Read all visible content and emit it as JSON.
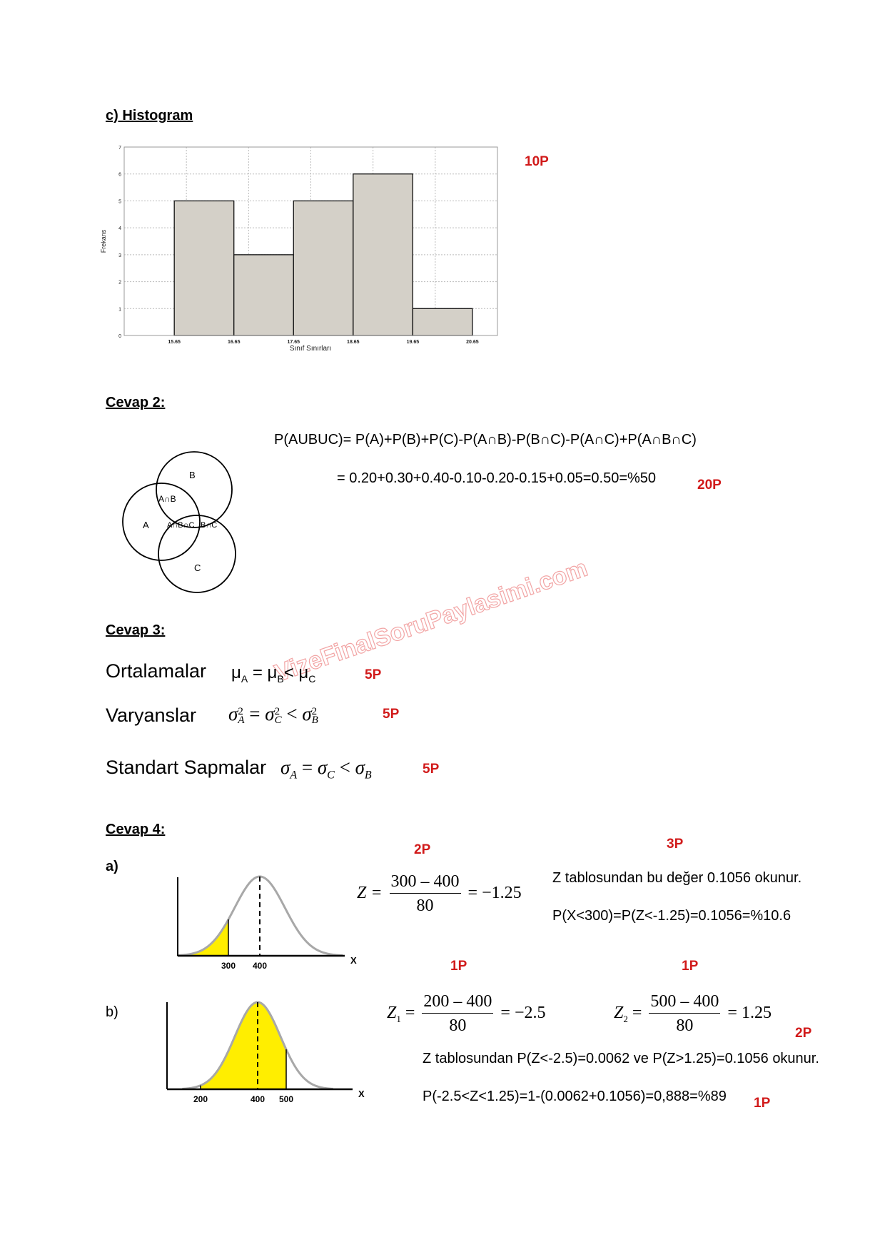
{
  "histogram_section": {
    "heading": "c) Histogram",
    "points": "10P"
  },
  "chart_data": {
    "type": "bar",
    "title": "",
    "xlabel": "Sınıf Sınırları",
    "ylabel": "Frekans",
    "bin_edges": [
      15.65,
      16.65,
      17.65,
      18.65,
      19.65,
      20.65
    ],
    "values": [
      5,
      3,
      5,
      6,
      1
    ],
    "xtick_labels": [
      "15.65",
      "16.65",
      "17.65",
      "18.65",
      "19.65",
      "20.65"
    ],
    "ytick_labels": [
      "0",
      "1",
      "2",
      "3",
      "4",
      "5",
      "6",
      "7"
    ],
    "ylim": [
      0,
      7
    ],
    "xlim": [
      14.81,
      21.07
    ],
    "grid": true,
    "bar_color": "#d4d0c8"
  },
  "cevap2": {
    "heading": "Cevap 2:",
    "formula": "P(AUBUC)= P(A)+P(B)+P(C)-P(A∩B)-P(B∩C)-P(A∩C)+P(A∩B∩C)",
    "result": "= 0.20+0.30+0.40-0.10-0.20-0.15+0.05=0.50=%50",
    "points": "20P",
    "venn": {
      "a": "A",
      "b": "B",
      "c": "C",
      "ab": "A∩B",
      "abc": "A∩B∩C",
      "bc": "B∩C"
    }
  },
  "watermark": "VizeFinalSoruPaylasimi.com",
  "cevap3": {
    "heading": "Cevap 3:",
    "rows": [
      {
        "label": "Ortalamalar",
        "points": "5P"
      },
      {
        "label": "Varyanslar",
        "points": "5P"
      },
      {
        "label": "Standart Sapmalar",
        "points": "5P"
      }
    ],
    "mu": "μ",
    "sigma": "σ",
    "eq": "=",
    "lt": "<",
    "sq": "2",
    "sub_a": "A",
    "sub_b": "B",
    "sub_c": "C"
  },
  "cevap4": {
    "heading": "Cevap 4:",
    "a": {
      "label": "a)",
      "points_formula": "2P",
      "points_text": "3P",
      "z_lhs": "Z =",
      "numerator": "300 – 400",
      "denominator": "80",
      "z_rhs": "= −1.25",
      "line1": "Z tablosundan bu değer 0.1056 okunur.",
      "line2": "P(X<300)=P(Z<-1.25)=0.1056=%10.6",
      "curve": {
        "mean": 400,
        "sd": 80,
        "shade_to": 300,
        "tick_labels": [
          "300",
          "400"
        ],
        "axis_label": "X"
      }
    },
    "b": {
      "label": "b)",
      "points_z1": "1P",
      "points_z2": "1P",
      "points_text": "2P",
      "points_final": "1P",
      "z1_lhs": "Z",
      "z1_sub": "1",
      "z1_num": "200 – 400",
      "z1_den": "80",
      "z1_rhs": "= −2.5",
      "z2_lhs": "Z",
      "z2_sub": "2",
      "z2_num": "500 – 400",
      "z2_den": "80",
      "z2_rhs": "= 1.25",
      "line1": "Z tablosundan P(Z<-2.5)=0.0062 ve P(Z>1.25)=0.1056 okunur.",
      "line2": "P(-2.5<Z<1.25)=1-(0.0062+0.1056)=0,888=%89",
      "curve": {
        "mean": 400,
        "sd": 80,
        "shade_from": 200,
        "shade_to": 500,
        "tick_labels": [
          "200",
          "400",
          "500"
        ],
        "axis_label": "X"
      }
    },
    "shade_color": "#ffee00"
  }
}
